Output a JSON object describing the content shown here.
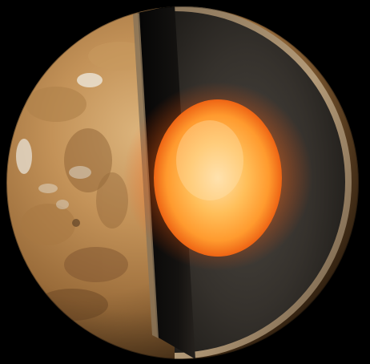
{
  "scene": {
    "subject": "planet-cutaway",
    "background_color": "#000000",
    "colors": {
      "surface_light": "#c9a06a",
      "surface_mid": "#a77a45",
      "surface_dark": "#5e3f20",
      "polar_cloud": "#e8e2d6",
      "crust_rim": "#a58c6c",
      "mantle": "#34302b",
      "mantle_shadow": "#151311",
      "inner_wall": "#0d0c0b",
      "core_center": "#ffd89a",
      "core_mid": "#ffb24a",
      "core_edge": "#f26a12",
      "glow": "#ff7a1a"
    }
  }
}
